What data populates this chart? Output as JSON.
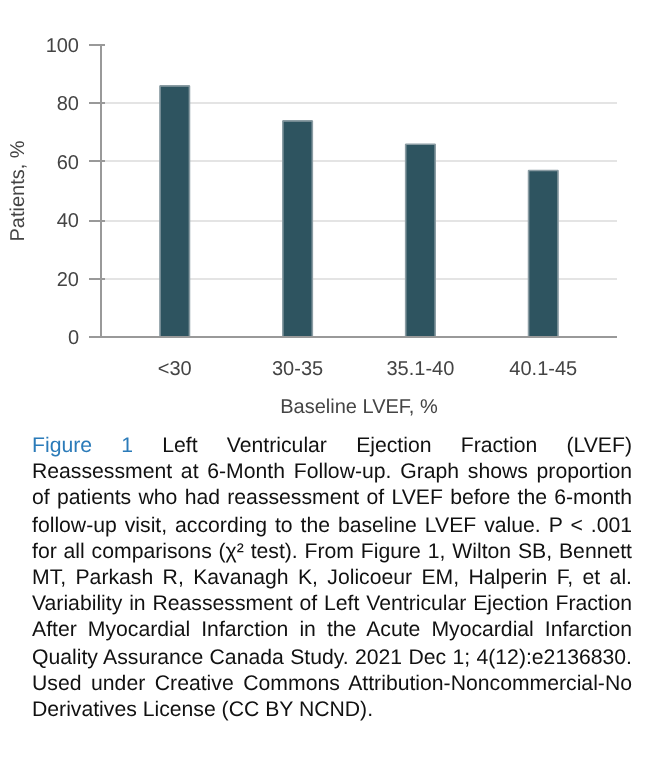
{
  "chart_data": {
    "type": "bar",
    "xlabel": "Baseline LVEF, %",
    "ylabel": "Patients, %",
    "categories": [
      "<30",
      "30-35",
      "35.1-40",
      "40.1-45"
    ],
    "values": [
      86,
      74,
      66,
      57
    ],
    "color": "#2e5460",
    "ylim": [
      0,
      100
    ],
    "yticks": [
      0,
      20,
      40,
      60,
      80,
      100
    ],
    "grid": "y",
    "annotations": [
      "Figure 1",
      "Left Ventricular Ejection Fraction (LVEF) Reassessment at 6-Month Follow-up. Graph shows proportion of patients who had reassessment of LVEF before the 6-month follow-up visit, according to the baseline LVEF value. P < .001 for all comparisons (χ² test). From Figure 1, Wilton SB, Bennett MT, Parkash R, Kavanagh K, Jolicoeur EM, Halperin F, et al. Variability in Reassessment of Left Ventricular Ejection Fraction After Myocardial Infarction in the Acute Myocardial Infarction Quality Assurance Canada Study. 2021 Dec 1; 4(12):e2136830. Used under Creative Commons Attribution-Noncommercial-No Derivatives License (CC BY NCND)."
    ]
  }
}
